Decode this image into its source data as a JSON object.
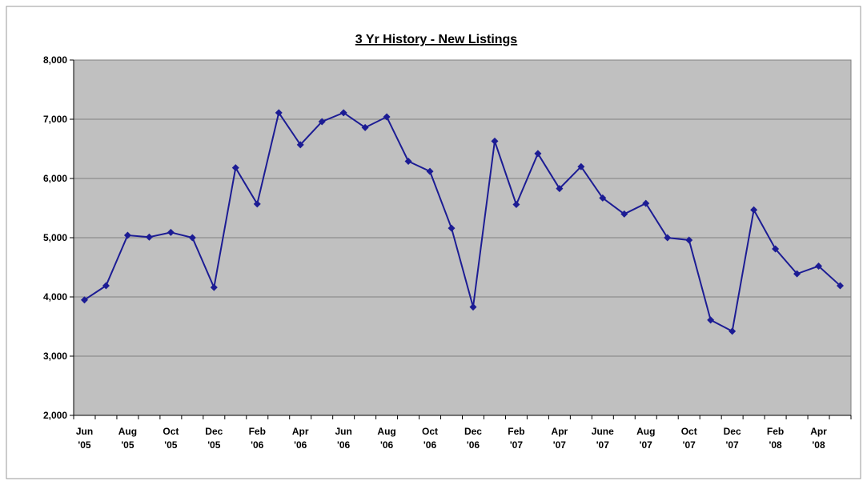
{
  "chart_data": {
    "type": "line",
    "title": "3 Yr History - New Listings",
    "categories": [
      "Jun '05",
      null,
      "Aug '05",
      null,
      "Oct '05",
      null,
      "Dec '05",
      null,
      "Feb '06",
      null,
      "Apr '06",
      null,
      "Jun '06",
      null,
      "Aug '06",
      null,
      "Oct '06",
      null,
      "Dec '06",
      null,
      "Feb '07",
      null,
      "Apr '07",
      null,
      "June '07",
      null,
      "Aug '07",
      null,
      "Oct '07",
      null,
      "Dec '07",
      null,
      "Feb '08",
      null,
      "Apr '08",
      null
    ],
    "series": [
      {
        "name": "New Listings",
        "color": "#1c1c94",
        "values": [
          3950,
          4190,
          5040,
          5010,
          5090,
          5000,
          4160,
          6180,
          5570,
          7110,
          6570,
          6960,
          7110,
          6860,
          7040,
          6290,
          6120,
          5160,
          3830,
          6630,
          5560,
          6420,
          5830,
          6200,
          5670,
          5400,
          5580,
          5000,
          4960,
          3610,
          3420,
          5470,
          4810,
          4390,
          4520,
          4190
        ]
      }
    ],
    "ylim": [
      2000,
      8000
    ],
    "yticks": [
      {
        "value": 2000,
        "label": "2,000"
      },
      {
        "value": 3000,
        "label": "3,000"
      },
      {
        "value": 4000,
        "label": "4,000"
      },
      {
        "value": 5000,
        "label": "5,000"
      },
      {
        "value": 6000,
        "label": "6,000"
      },
      {
        "value": 7000,
        "label": "7,000"
      },
      {
        "value": 8000,
        "label": "8,000"
      }
    ],
    "grid": true,
    "plot_background": "#c0c0c0"
  }
}
